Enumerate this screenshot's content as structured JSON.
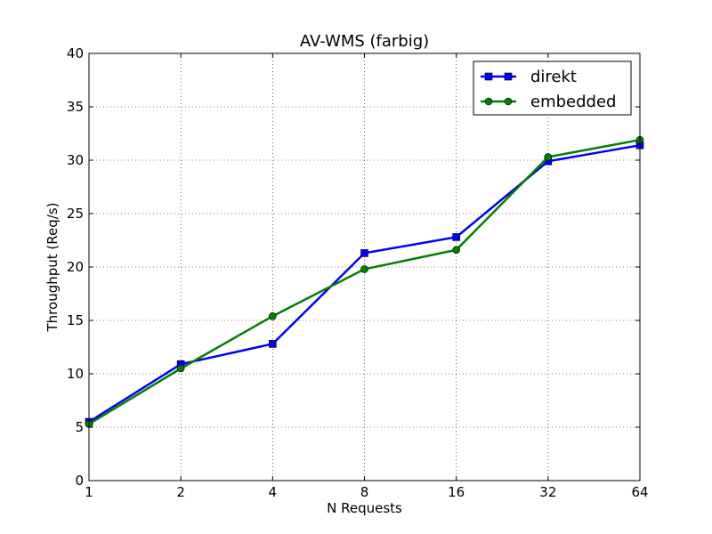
{
  "chart_data": {
    "type": "line",
    "title": "AV-WMS (farbig)",
    "xlabel": "N Requests",
    "ylabel": "Throughput (Req/s)",
    "x_scale": "log2",
    "x": [
      1,
      2,
      4,
      8,
      16,
      32,
      64
    ],
    "x_tick_labels": [
      "1",
      "2",
      "4",
      "8",
      "16",
      "32",
      "64"
    ],
    "ylim": [
      0,
      40
    ],
    "y_ticks": [
      0,
      5,
      10,
      15,
      20,
      25,
      30,
      35,
      40
    ],
    "grid": true,
    "legend_position": "top-right",
    "series": [
      {
        "name": "direkt",
        "color": "#0000ff",
        "marker": "square",
        "values": [
          5.5,
          10.9,
          12.8,
          21.3,
          22.8,
          29.9,
          31.4
        ]
      },
      {
        "name": "embedded",
        "color": "#008000",
        "marker": "circle",
        "values": [
          5.3,
          10.5,
          15.4,
          19.8,
          21.6,
          30.3,
          31.9
        ]
      }
    ]
  }
}
